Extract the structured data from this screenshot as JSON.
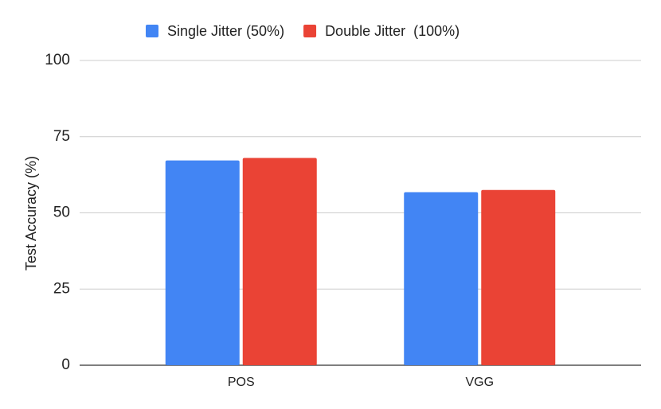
{
  "chart_data": {
    "type": "bar",
    "y_label": "Test Accuracy (%)",
    "categories": [
      "POS",
      "VGG"
    ],
    "series": [
      {
        "name": "Single Jitter (50%)",
        "color": "#4285f4",
        "values": [
          67.2,
          56.8
        ]
      },
      {
        "name": "Double Jitter  (100%)",
        "color": "#ea4335",
        "values": [
          68.0,
          57.5
        ]
      }
    ],
    "ylim": [
      0,
      100
    ],
    "yticks": [
      0,
      25,
      50,
      75,
      100
    ],
    "grid": true,
    "legend": "top"
  }
}
